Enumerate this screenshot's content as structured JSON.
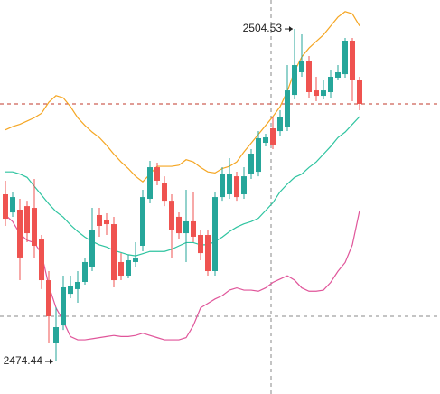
{
  "chart_data": {
    "type": "candlestick",
    "ylim": [
      2471.5,
      2507.15
    ],
    "up_color": "#26a69a",
    "down_color": "#ef5350",
    "open": [
      2489.57,
      2487.93,
      2488.18,
      2488.5,
      2488.34,
      2485.48,
      2481.8,
      2476.08,
      2477.71,
      2480.57,
      2480.99,
      2481.64,
      2483.03,
      2487.69,
      2487.28,
      2486.87,
      2483.44,
      2482.21,
      2483.44,
      2484.91,
      2489.16,
      2492.02,
      2490.63,
      2488.99,
      2487.53,
      2486.05,
      2487.12,
      2485.89,
      2485.89,
      2482.62,
      2489.32,
      2489.57,
      2491.2,
      2489.57,
      2491.37,
      2491.61,
      2494.23,
      2495.54,
      2495.29,
      2495.7,
      2498.56,
      2500.61,
      2501.59,
      2498.97,
      2498.48,
      2498.81,
      2500.12,
      2500.44,
      2503.47,
      2499.95
    ],
    "high": [
      2490.8,
      2489.81,
      2489.16,
      2488.99,
      2490.96,
      2485.89,
      2482.62,
      2479.35,
      2482.21,
      2482.21,
      2482.62,
      2483.85,
      2488.34,
      2488.34,
      2487.85,
      2487.53,
      2484.25,
      2484.09,
      2485.24,
      2489.98,
      2492.6,
      2492.43,
      2491.2,
      2489.57,
      2487.93,
      2489.98,
      2489.81,
      2486.3,
      2486.3,
      2489.81,
      2492.02,
      2492.84,
      2491.61,
      2492.02,
      2493.66,
      2495.29,
      2495.05,
      2496.52,
      2497.17,
      2501.26,
      2504.53,
      2504.04,
      2502.08,
      2500.2,
      2499.95,
      2500.77,
      2501.26,
      2503.72,
      2503.72,
      2500.2
    ],
    "low": [
      2486.71,
      2487.53,
      2481.8,
      2485.24,
      2483.85,
      2480.99,
      2476.08,
      2474.44,
      2477.3,
      2480.17,
      2479.76,
      2481.39,
      2482.62,
      2485.73,
      2485.89,
      2481.15,
      2481.8,
      2481.97,
      2483.03,
      2484.42,
      2488.75,
      2490.39,
      2488.5,
      2483.85,
      2485.48,
      2483.44,
      2485.24,
      2483.6,
      2482.21,
      2482.21,
      2488.99,
      2489.16,
      2488.99,
      2489.16,
      2490.96,
      2491.2,
      2493.9,
      2493.66,
      2494.88,
      2495.29,
      2498.16,
      2500.2,
      2498.32,
      2497.99,
      2498.16,
      2498.32,
      2499.95,
      2500.12,
      2497.99,
      2497.17
    ],
    "close": [
      2487.36,
      2489.32,
      2483.85,
      2486.05,
      2484.91,
      2481.8,
      2478.53,
      2477.55,
      2481.15,
      2481.31,
      2481.64,
      2483.44,
      2486.3,
      2486.71,
      2486.87,
      2481.8,
      2482.21,
      2483.6,
      2483.85,
      2489.32,
      2492.02,
      2490.8,
      2488.99,
      2486.3,
      2486.05,
      2487.12,
      2485.73,
      2484.25,
      2482.62,
      2489.32,
      2491.45,
      2491.45,
      2489.32,
      2491.2,
      2493.25,
      2494.64,
      2494.72,
      2494.07,
      2496.52,
      2498.97,
      2501.26,
      2501.59,
      2498.81,
      2498.48,
      2498.97,
      2500.2,
      2500.61,
      2503.47,
      2499.95,
      2497.75
    ],
    "series": [
      {
        "color": "#f5a623",
        "values": [
          2495.4,
          2495.7,
          2495.9,
          2496.2,
          2496.5,
          2496.9,
          2497.9,
          2498.5,
          2498.3,
          2497.5,
          2496.5,
          2495.8,
          2495.2,
          2494.7,
          2494.0,
          2493.2,
          2492.5,
          2491.9,
          2491.2,
          2490.7,
          2491.4,
          2492.1,
          2492.1,
          2492.1,
          2492.2,
          2492.7,
          2492.5,
          2492.0,
          2491.6,
          2491.5,
          2491.9,
          2492.1,
          2492.5,
          2493.4,
          2494.2,
          2495.0,
          2495.8,
          2496.6,
          2497.5,
          2498.9,
          2500.7,
          2502.0,
          2502.8,
          2503.4,
          2504.0,
          2504.8,
          2505.6,
          2506.1,
          2505.9,
          2504.8
        ]
      },
      {
        "color": "#2ec4a0",
        "values": [
          2491.6,
          2491.6,
          2491.4,
          2491.1,
          2490.3,
          2489.5,
          2488.7,
          2488.0,
          2487.5,
          2486.8,
          2486.2,
          2485.7,
          2485.3,
          2485.0,
          2484.8,
          2484.5,
          2484.3,
          2484.1,
          2484.0,
          2484.2,
          2484.4,
          2484.4,
          2484.4,
          2484.6,
          2484.9,
          2485.2,
          2485.2,
          2485.0,
          2485.0,
          2485.3,
          2485.7,
          2486.2,
          2486.6,
          2486.9,
          2487.1,
          2487.4,
          2488.1,
          2488.8,
          2489.8,
          2490.5,
          2491.1,
          2491.4,
          2492.0,
          2492.5,
          2493.2,
          2493.9,
          2494.7,
          2495.2,
          2495.9,
          2496.6
        ]
      },
      {
        "color": "#e0559a",
        "values": [
          2487.7,
          2487.1,
          2486.0,
          2485.4,
          2485.2,
          2484.2,
          2481.3,
          2479.3,
          2478.1,
          2476.7,
          2476.4,
          2476.4,
          2476.5,
          2476.6,
          2476.7,
          2476.8,
          2476.7,
          2476.7,
          2476.8,
          2477.0,
          2476.8,
          2476.6,
          2476.4,
          2476.4,
          2476.4,
          2476.6,
          2477.7,
          2479.3,
          2479.7,
          2480.1,
          2480.4,
          2480.9,
          2481.1,
          2480.9,
          2480.9,
          2480.8,
          2481.1,
          2481.6,
          2481.9,
          2482.2,
          2481.8,
          2481.1,
          2480.8,
          2480.8,
          2480.9,
          2481.6,
          2482.6,
          2483.4,
          2485.0,
          2488.1
        ]
      }
    ],
    "last_price_line": {
      "color": "#c0392b"
    },
    "annotations": [
      {
        "text": "2504.53"
      },
      {
        "text": "2474.44"
      }
    ]
  }
}
